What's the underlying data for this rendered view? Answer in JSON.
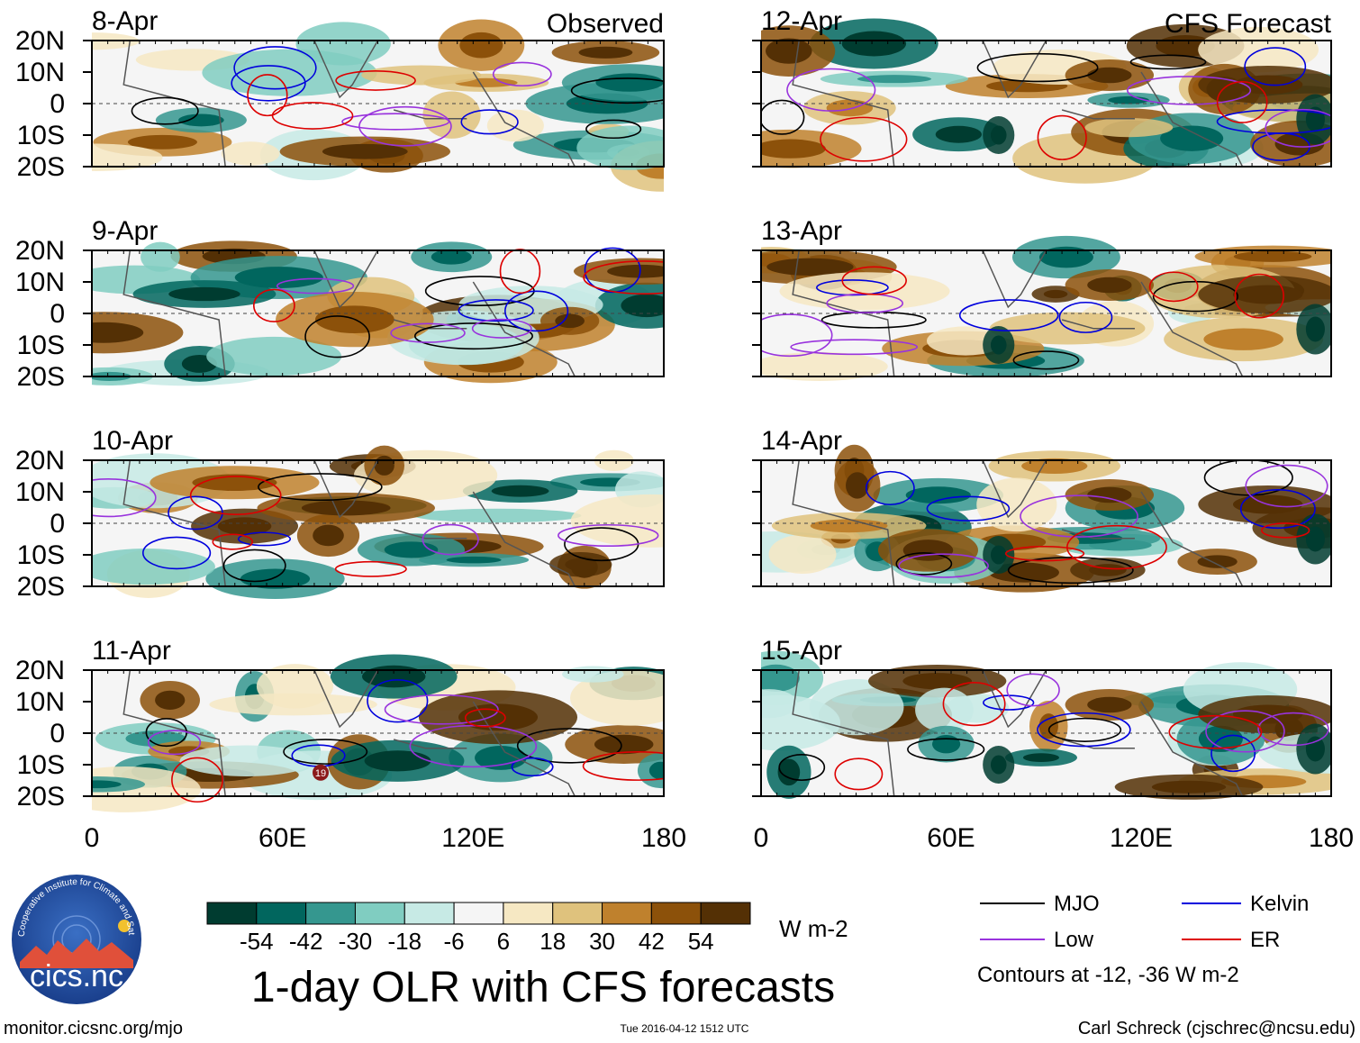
{
  "chart_data": {
    "type": "heatmap",
    "title": "1-day OLR with CFS forecasts",
    "variable": "OLR anomaly",
    "units": "W m-2",
    "observed_label": "Observed",
    "forecast_label": "CFS Forecast",
    "lat_ticks": [
      "20N",
      "10N",
      "0",
      "10S",
      "20S"
    ],
    "lon_ticks": [
      "0",
      "60E",
      "120E",
      "180"
    ],
    "lat_range": [
      -20,
      20
    ],
    "lon_range": [
      0,
      180
    ],
    "colorbar": {
      "levels": [
        "-54",
        "-42",
        "-30",
        "-18",
        "-6",
        "6",
        "18",
        "30",
        "42",
        "54"
      ],
      "colors": [
        "#003c30",
        "#01665e",
        "#35978f",
        "#80cdc1",
        "#c7eae5",
        "#f5f5f5",
        "#f6e8c3",
        "#dfc27d",
        "#bf812d",
        "#8c510a",
        "#543005"
      ]
    },
    "panels": {
      "observed": [
        "8-Apr",
        "9-Apr",
        "10-Apr",
        "11-Apr"
      ],
      "forecast": [
        "12-Apr",
        "13-Apr",
        "14-Apr",
        "15-Apr"
      ]
    },
    "contour_legend": [
      {
        "name": "MJO",
        "color": "#000000"
      },
      {
        "name": "Kelvin",
        "color": "#0000dd"
      },
      {
        "name": "Low",
        "color": "#9933dd"
      },
      {
        "name": "ER",
        "color": "#dd0000"
      }
    ],
    "contour_note": "Contours at -12, -36 W m-2",
    "annotation": "19"
  },
  "footer": {
    "website": "monitor.cicsnc.org/mjo",
    "timestamp": "Tue 2016-04-12 1512 UTC",
    "credit": "Carl Schreck (cjschrec@ncsu.edu)"
  },
  "logo": {
    "name": "cics.nc",
    "arc_text": "Cooperative Institute for Climate and Satellites"
  }
}
